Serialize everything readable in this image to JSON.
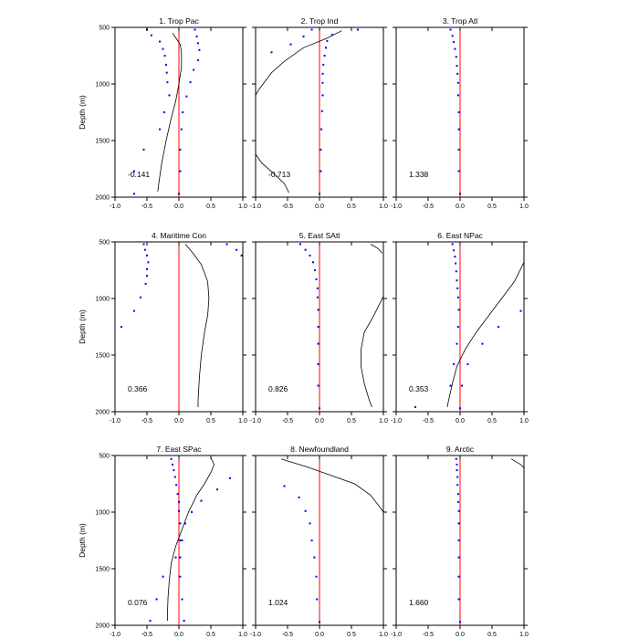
{
  "ylabel": "Depth (m)",
  "colors": {
    "zero_line": "#ff0000",
    "dots": "#0000ee",
    "curve": "#000000",
    "frame": "#000000"
  },
  "chart_data": [
    {
      "type": "scatter",
      "title": "1. Trop Pac",
      "annotation": "-0.141",
      "xlim": [
        -1,
        1
      ],
      "ylim": [
        2000,
        500
      ],
      "xticks": [
        "-1.0",
        "-0.5",
        "0.0",
        "0.5",
        "1.0"
      ],
      "yticks": [
        "500",
        "1000",
        "1500",
        "2000"
      ],
      "series": [
        {
          "points": [
            [
              -0.5,
              520
            ],
            [
              -0.43,
              570
            ],
            [
              -0.3,
              625
            ],
            [
              -0.25,
              690
            ],
            [
              -0.22,
              750
            ],
            [
              -0.2,
              830
            ],
            [
              -0.19,
              900
            ],
            [
              -0.18,
              985
            ],
            [
              -0.15,
              1100
            ],
            [
              -0.23,
              1250
            ],
            [
              -0.3,
              1400
            ],
            [
              -0.55,
              1580
            ],
            [
              -0.7,
              1770
            ],
            [
              -0.7,
              1970
            ]
          ]
        },
        {
          "points": [
            [
              0.25,
              520
            ],
            [
              0.28,
              580
            ],
            [
              0.3,
              640
            ],
            [
              0.32,
              700
            ],
            [
              0.3,
              790
            ],
            [
              0.23,
              875
            ],
            [
              0.18,
              985
            ],
            [
              0.12,
              1110
            ],
            [
              0.06,
              1250
            ],
            [
              0.04,
              1400
            ],
            [
              0.02,
              1580
            ],
            [
              0.02,
              1770
            ],
            [
              0.0,
              1970
            ]
          ]
        }
      ],
      "curve": [
        [
          -0.1,
          550
        ],
        [
          -0.04,
          600
        ],
        [
          0.02,
          650
        ],
        [
          0.04,
          720
        ],
        [
          0.04,
          850
        ],
        [
          0.0,
          1000
        ],
        [
          -0.05,
          1150
        ],
        [
          -0.12,
          1300
        ],
        [
          -0.2,
          1500
        ],
        [
          -0.27,
          1700
        ],
        [
          -0.32,
          1900
        ],
        [
          -0.33,
          1950
        ]
      ]
    },
    {
      "type": "scatter",
      "title": "2. Trop Ind",
      "annotation": "-0.713",
      "xlim": [
        -1,
        1
      ],
      "ylim": [
        2000,
        500
      ],
      "xticks": [
        "-1.0",
        "-0.5",
        "0.0",
        "0.5",
        "1.0"
      ],
      "yticks": [
        "500",
        "1000",
        "1500",
        "2000"
      ],
      "series": [
        {
          "points": [
            [
              -0.12,
              520
            ],
            [
              -0.25,
              580
            ],
            [
              -0.45,
              650
            ],
            [
              -0.75,
              720
            ]
          ]
        },
        {
          "points": [
            [
              0.6,
              520
            ],
            [
              0.2,
              565
            ],
            [
              0.12,
              620
            ],
            [
              0.1,
              680
            ],
            [
              0.08,
              750
            ],
            [
              0.06,
              830
            ],
            [
              0.05,
              910
            ],
            [
              0.05,
              990
            ],
            [
              0.05,
              1100
            ],
            [
              0.04,
              1240
            ],
            [
              0.03,
              1400
            ],
            [
              0.02,
              1580
            ],
            [
              0.02,
              1770
            ],
            [
              0.0,
              1970
            ]
          ]
        }
      ],
      "curve": [
        [
          0.35,
          530
        ],
        [
          0.1,
          600
        ],
        [
          -0.25,
          680
        ],
        [
          -0.55,
          800
        ],
        [
          -0.75,
          900
        ],
        [
          -0.95,
          1050
        ],
        [
          -1.0,
          1100
        ]
      ],
      "curve2": [
        [
          -1.0,
          1620
        ],
        [
          -0.9,
          1700
        ],
        [
          -0.7,
          1800
        ],
        [
          -0.55,
          1880
        ],
        [
          -0.48,
          1960
        ]
      ]
    },
    {
      "type": "scatter",
      "title": "3. Trop Atl",
      "annotation": "1.338",
      "xlim": [
        -1,
        1
      ],
      "ylim": [
        2000,
        500
      ],
      "xticks": [
        "-1.0",
        "-0.5",
        "0.0",
        "0.5",
        "1.0"
      ],
      "yticks": [
        "500",
        "1000",
        "1500",
        "2000"
      ],
      "series": [
        {
          "points": [
            [
              -0.15,
              520
            ],
            [
              -0.12,
              575
            ],
            [
              -0.1,
              630
            ],
            [
              -0.08,
              690
            ],
            [
              -0.06,
              760
            ],
            [
              -0.05,
              840
            ],
            [
              -0.04,
              910
            ],
            [
              -0.03,
              990
            ],
            [
              -0.03,
              1100
            ],
            [
              -0.02,
              1250
            ],
            [
              -0.02,
              1400
            ],
            [
              -0.02,
              1580
            ],
            [
              -0.02,
              1770
            ],
            [
              0.0,
              1970
            ]
          ]
        }
      ],
      "curve": []
    },
    {
      "type": "scatter",
      "title": "4. Maritime Con",
      "annotation": "0.366",
      "xlim": [
        -1,
        1
      ],
      "ylim": [
        2000,
        500
      ],
      "xticks": [
        "-1.0",
        "-0.5",
        "0.0",
        "0.5",
        "1.0"
      ],
      "yticks": [
        "500",
        "1000",
        "1500",
        "2000"
      ],
      "series": [
        {
          "points": [
            [
              -0.55,
              520
            ],
            [
              -0.53,
              570
            ],
            [
              -0.5,
              620
            ],
            [
              -0.48,
              680
            ],
            [
              -0.5,
              740
            ],
            [
              -0.5,
              800
            ],
            [
              -0.52,
              870
            ],
            [
              -0.6,
              990
            ],
            [
              -0.7,
              1110
            ],
            [
              -0.9,
              1250
            ]
          ]
        },
        {
          "points": [
            [
              0.75,
              520
            ],
            [
              0.9,
              570
            ],
            [
              0.98,
              620
            ]
          ]
        }
      ],
      "curve": [
        [
          0.1,
          520
        ],
        [
          0.22,
          600
        ],
        [
          0.35,
          700
        ],
        [
          0.45,
          850
        ],
        [
          0.47,
          1000
        ],
        [
          0.45,
          1150
        ],
        [
          0.4,
          1300
        ],
        [
          0.35,
          1500
        ],
        [
          0.32,
          1700
        ],
        [
          0.3,
          1900
        ],
        [
          0.3,
          1960
        ]
      ]
    },
    {
      "type": "scatter",
      "title": "5. East SAtl",
      "annotation": "0.826",
      "xlim": [
        -1,
        1
      ],
      "ylim": [
        2000,
        500
      ],
      "xticks": [
        "-1.0",
        "-0.5",
        "0.0",
        "0.5",
        "1.0"
      ],
      "yticks": [
        "500",
        "1000",
        "1500",
        "2000"
      ],
      "series": [
        {
          "points": [
            [
              -0.3,
              520
            ],
            [
              -0.22,
              570
            ],
            [
              -0.15,
              620
            ],
            [
              -0.1,
              680
            ],
            [
              -0.07,
              750
            ],
            [
              -0.05,
              830
            ],
            [
              -0.03,
              910
            ],
            [
              -0.03,
              990
            ],
            [
              -0.02,
              1100
            ],
            [
              -0.02,
              1250
            ],
            [
              -0.02,
              1400
            ],
            [
              -0.02,
              1580
            ],
            [
              -0.02,
              1770
            ],
            [
              0.0,
              1970
            ]
          ]
        }
      ],
      "curve": [
        [
          0.8,
          520
        ],
        [
          0.92,
          560
        ],
        [
          0.98,
          600
        ]
      ],
      "curve2": [
        [
          1.0,
          980
        ],
        [
          0.85,
          1150
        ],
        [
          0.7,
          1300
        ],
        [
          0.65,
          1450
        ],
        [
          0.65,
          1600
        ],
        [
          0.7,
          1750
        ],
        [
          0.78,
          1900
        ],
        [
          0.82,
          1960
        ]
      ]
    },
    {
      "type": "scatter",
      "title": "6. East NPac",
      "annotation": "0.353",
      "xlim": [
        -1,
        1
      ],
      "ylim": [
        2000,
        500
      ],
      "xticks": [
        "-1.0",
        "-0.5",
        "0.0",
        "0.5",
        "1.0"
      ],
      "yticks": [
        "500",
        "1000",
        "1500",
        "2000"
      ],
      "series": [
        {
          "points": [
            [
              -0.12,
              520
            ],
            [
              -0.1,
              575
            ],
            [
              -0.08,
              630
            ],
            [
              -0.07,
              690
            ],
            [
              -0.06,
              760
            ],
            [
              -0.05,
              840
            ],
            [
              -0.04,
              910
            ],
            [
              -0.03,
              990
            ],
            [
              -0.02,
              1100
            ],
            [
              -0.03,
              1250
            ],
            [
              -0.05,
              1400
            ],
            [
              -0.1,
              1580
            ],
            [
              -0.15,
              1770
            ],
            [
              -0.7,
              1960
            ]
          ]
        },
        {
          "points": [
            [
              0.95,
              1110
            ],
            [
              0.6,
              1250
            ],
            [
              0.35,
              1400
            ],
            [
              0.12,
              1580
            ],
            [
              0.03,
              1770
            ],
            [
              0.0,
              1970
            ]
          ]
        }
      ],
      "curve": [
        [
          1.0,
          680
        ],
        [
          0.85,
          850
        ],
        [
          0.65,
          1000
        ],
        [
          0.45,
          1150
        ],
        [
          0.25,
          1300
        ],
        [
          0.08,
          1450
        ],
        [
          -0.05,
          1600
        ],
        [
          -0.12,
          1750
        ],
        [
          -0.18,
          1900
        ],
        [
          -0.2,
          1960
        ]
      ]
    },
    {
      "type": "scatter",
      "title": "7. East SPac",
      "annotation": "0.076",
      "xlim": [
        -1,
        1
      ],
      "ylim": [
        2000,
        500
      ],
      "xticks": [
        "-1.0",
        "-0.5",
        "0.0",
        "0.5",
        "1.0"
      ],
      "yticks": [
        "500",
        "1000",
        "1500",
        "2000"
      ],
      "series": [
        {
          "points": [
            [
              -0.12,
              530
            ],
            [
              -0.1,
              580
            ],
            [
              -0.08,
              630
            ],
            [
              -0.06,
              690
            ],
            [
              -0.04,
              760
            ],
            [
              -0.02,
              840
            ],
            [
              0.0,
              910
            ],
            [
              0.0,
              990
            ],
            [
              0.02,
              1100
            ],
            [
              0.02,
              1250
            ],
            [
              -0.05,
              1400
            ],
            [
              -0.25,
              1570
            ],
            [
              -0.35,
              1770
            ],
            [
              -0.45,
              1960
            ]
          ]
        },
        {
          "points": [
            [
              0.8,
              700
            ],
            [
              0.6,
              800
            ],
            [
              0.35,
              900
            ],
            [
              0.2,
              1000
            ],
            [
              0.1,
              1100
            ],
            [
              0.05,
              1250
            ],
            [
              0.02,
              1400
            ],
            [
              0.02,
              1570
            ],
            [
              0.05,
              1770
            ],
            [
              0.08,
              1960
            ]
          ]
        }
      ],
      "curve": [
        [
          0.5,
          520
        ],
        [
          0.55,
          580
        ],
        [
          0.5,
          650
        ],
        [
          0.4,
          750
        ],
        [
          0.28,
          850
        ],
        [
          0.15,
          1000
        ],
        [
          0.05,
          1150
        ],
        [
          -0.05,
          1300
        ],
        [
          -0.12,
          1450
        ],
        [
          -0.15,
          1600
        ],
        [
          -0.17,
          1750
        ],
        [
          -0.18,
          1900
        ],
        [
          -0.18,
          1960
        ]
      ]
    },
    {
      "type": "scatter",
      "title": "8. Newfoundland",
      "annotation": "1.024",
      "xlim": [
        -1,
        1
      ],
      "ylim": [
        2000,
        500
      ],
      "xticks": [
        "-1.0",
        "-0.5",
        "0.0",
        "0.5",
        "1.0"
      ],
      "yticks": [
        "500",
        "1000",
        "1500",
        "2000"
      ],
      "series": [
        {
          "points": [
            [
              -0.55,
              770
            ],
            [
              -0.32,
              870
            ],
            [
              -0.22,
              990
            ],
            [
              -0.15,
              1100
            ],
            [
              -0.12,
              1250
            ],
            [
              -0.08,
              1400
            ],
            [
              -0.05,
              1570
            ],
            [
              -0.04,
              1770
            ],
            [
              0.0,
              1970
            ]
          ]
        }
      ],
      "curve": [
        [
          -0.6,
          530
        ],
        [
          -0.2,
          600
        ],
        [
          0.2,
          680
        ],
        [
          0.55,
          750
        ],
        [
          0.8,
          850
        ],
        [
          0.95,
          960
        ],
        [
          1.0,
          1000
        ]
      ]
    },
    {
      "type": "scatter",
      "title": "9. Arctic",
      "annotation": "1.660",
      "xlim": [
        -1,
        1
      ],
      "ylim": [
        2000,
        500
      ],
      "xticks": [
        "-1.0",
        "-0.5",
        "0.0",
        "0.5",
        "1.0"
      ],
      "yticks": [
        "500",
        "1000",
        "1500",
        "2000"
      ],
      "series": [
        {
          "points": [
            [
              -0.06,
              530
            ],
            [
              -0.05,
              580
            ],
            [
              -0.05,
              630
            ],
            [
              -0.04,
              690
            ],
            [
              -0.04,
              760
            ],
            [
              -0.03,
              840
            ],
            [
              -0.03,
              910
            ],
            [
              -0.02,
              990
            ],
            [
              -0.02,
              1100
            ],
            [
              -0.02,
              1250
            ],
            [
              -0.02,
              1400
            ],
            [
              -0.02,
              1570
            ],
            [
              -0.02,
              1770
            ],
            [
              0.0,
              1970
            ]
          ]
        }
      ],
      "curve": [
        [
          0.8,
          530
        ],
        [
          0.95,
          580
        ],
        [
          1.0,
          610
        ]
      ]
    }
  ]
}
